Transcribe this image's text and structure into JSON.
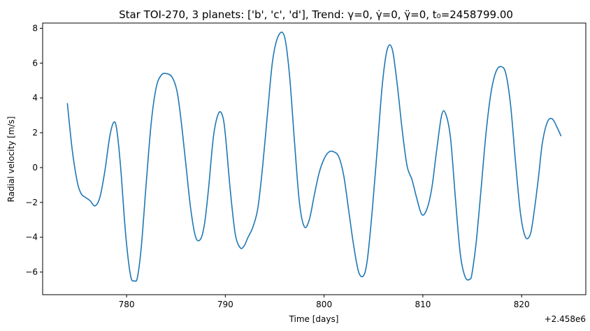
{
  "chart_data": {
    "type": "line",
    "title": "Star TOI-270, 3 planets: ['b', 'c', 'd'], Trend: γ=0, γ̇=0, γ̈=0, t₀=2458799.00",
    "xlabel": "Time [days]",
    "ylabel": "Radial velocity [m/s]",
    "x_offset_label": "+2.458e6",
    "xlim": [
      771.5,
      826.5
    ],
    "ylim": [
      -7.3,
      8.3
    ],
    "xticks": [
      780,
      790,
      800,
      810,
      820
    ],
    "yticks": [
      -6,
      -4,
      -2,
      0,
      2,
      4,
      6,
      8
    ],
    "xtick_labels": [
      "780",
      "790",
      "800",
      "810",
      "820"
    ],
    "ytick_labels": [
      "−6",
      "−4",
      "−2",
      "0",
      "2",
      "4",
      "6",
      "8"
    ],
    "grid": false,
    "legend": "none",
    "series": [
      {
        "color": "#1f77b4",
        "x": [
          774.0,
          774.5,
          775.0,
          775.4,
          775.8,
          776.3,
          776.8,
          777.3,
          777.8,
          778.3,
          778.7,
          779.0,
          779.4,
          779.9,
          780.4,
          780.8,
          781.1,
          781.5,
          782.0,
          782.5,
          783.0,
          783.5,
          784.0,
          784.6,
          785.1,
          785.5,
          786.0,
          786.5,
          787.0,
          787.5,
          787.9,
          788.3,
          788.8,
          789.3,
          789.7,
          790.0,
          790.5,
          791.0,
          791.5,
          791.9,
          792.3,
          792.8,
          793.3,
          793.8,
          794.3,
          794.8,
          795.4,
          796.0,
          796.5,
          797.0,
          797.5,
          798.0,
          798.5,
          799.0,
          799.5,
          800.0,
          800.5,
          801.0,
          801.5,
          802.0,
          802.5,
          803.0,
          803.5,
          804.0,
          804.4,
          804.9,
          805.4,
          805.9,
          806.4,
          806.9,
          807.4,
          807.9,
          808.4,
          808.9,
          809.4,
          809.9,
          810.4,
          810.9,
          811.4,
          811.9,
          812.3,
          812.8,
          813.3,
          813.8,
          814.3,
          814.8,
          815.0,
          815.4,
          815.9,
          816.4,
          816.9,
          817.4,
          817.9,
          818.4,
          818.9,
          819.4,
          819.9,
          820.4,
          820.9,
          821.3,
          821.7,
          822.1,
          822.6,
          823.1,
          823.6,
          824.0
        ],
        "y": [
          3.7,
          1.0,
          -0.8,
          -1.5,
          -1.7,
          -1.9,
          -2.2,
          -1.7,
          -0.2,
          1.8,
          2.6,
          2.2,
          0.0,
          -3.8,
          -6.2,
          -6.5,
          -6.3,
          -4.5,
          -0.8,
          2.6,
          4.6,
          5.3,
          5.4,
          5.2,
          4.4,
          2.8,
          0.2,
          -2.4,
          -4.0,
          -4.1,
          -3.2,
          -1.2,
          1.8,
          3.1,
          3.0,
          1.9,
          -1.3,
          -3.8,
          -4.6,
          -4.5,
          -4.0,
          -3.4,
          -2.3,
          0.2,
          3.3,
          6.2,
          7.6,
          7.5,
          5.3,
          1.5,
          -2.0,
          -3.4,
          -3.0,
          -1.6,
          -0.3,
          0.5,
          0.9,
          0.9,
          0.6,
          -0.5,
          -2.5,
          -4.5,
          -6.0,
          -6.2,
          -5.2,
          -2.3,
          1.2,
          4.8,
          6.8,
          6.8,
          4.8,
          2.2,
          0.1,
          -0.7,
          -1.8,
          -2.7,
          -2.4,
          -1.2,
          1.0,
          3.0,
          3.1,
          1.7,
          -1.8,
          -5.0,
          -6.3,
          -6.4,
          -6.0,
          -4.3,
          -1.2,
          2.0,
          4.3,
          5.5,
          5.8,
          5.4,
          3.5,
          0.2,
          -2.7,
          -4.0,
          -3.8,
          -2.4,
          -0.6,
          1.4,
          2.6,
          2.8,
          2.3,
          1.8
        ]
      }
    ]
  }
}
